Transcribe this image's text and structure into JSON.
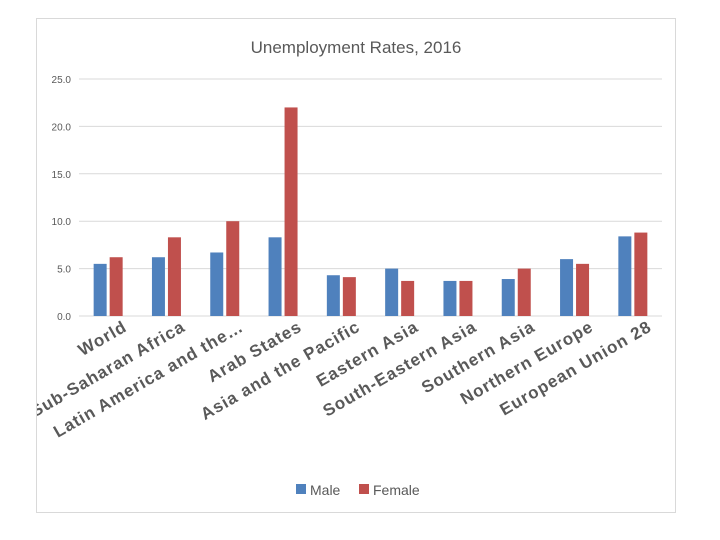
{
  "chart_data": {
    "type": "bar",
    "title": "Unemployment Rates, 2016",
    "categories": [
      "World",
      "Sub-Saharan Africa",
      "Latin America and the…",
      "Arab States",
      "Asia and the Pacific",
      "Eastern Asia",
      "South-Eastern Asia",
      "Southern Asia",
      "Northern Europe",
      "European Union 28"
    ],
    "series": [
      {
        "name": "Male",
        "color": "#4f81bd",
        "values": [
          5.5,
          6.2,
          6.7,
          8.3,
          4.3,
          5.0,
          3.7,
          3.9,
          6.0,
          8.4
        ]
      },
      {
        "name": "Female",
        "color": "#c0504d",
        "values": [
          6.2,
          8.3,
          10.0,
          22.0,
          4.1,
          3.7,
          3.7,
          5.0,
          5.5,
          8.8
        ]
      }
    ],
    "yticks": [
      "0.0",
      "5.0",
      "10.0",
      "15.0",
      "20.0",
      "25.0"
    ],
    "ylim": [
      0,
      25
    ],
    "xlabel": "",
    "ylabel": "",
    "grid": true,
    "legend": "bottom"
  }
}
